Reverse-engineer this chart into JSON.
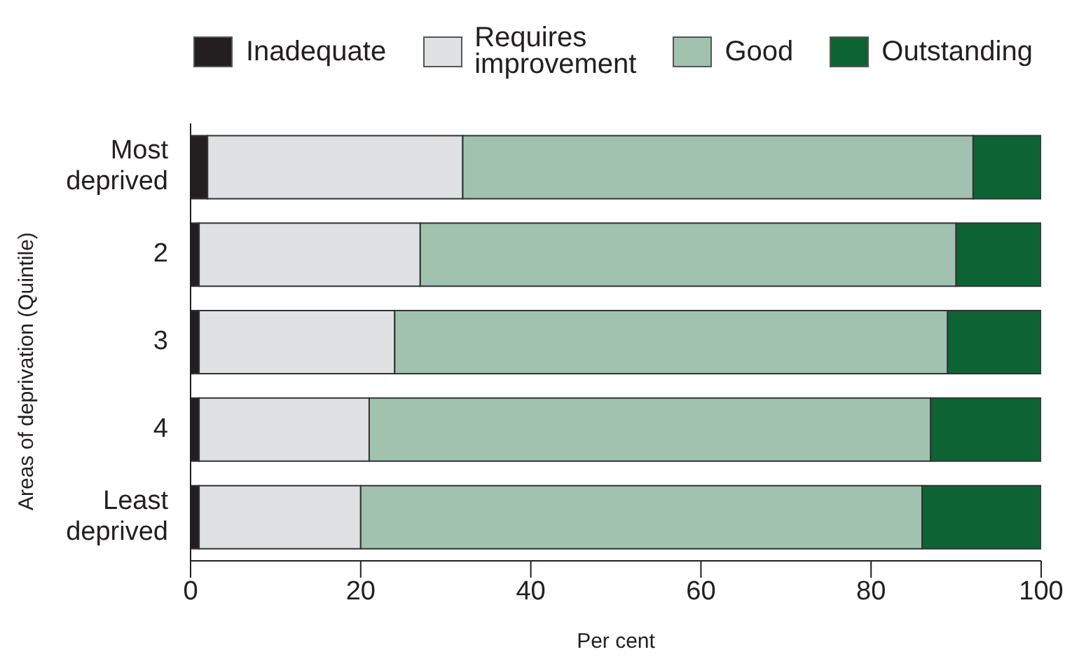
{
  "chart_data": {
    "type": "bar",
    "orientation": "horizontal",
    "stacked": true,
    "xlabel": "Per cent",
    "ylabel": "Areas of deprivation (Quintile)",
    "categories": [
      "Most\ndeprived",
      "2",
      "3",
      "4",
      "Least\ndeprived"
    ],
    "series": [
      {
        "name": "Inadequate",
        "color": "#231f20",
        "values": [
          2,
          1,
          1,
          1,
          1
        ]
      },
      {
        "name": "Requires\nimprovement",
        "color": "#e0e1e3",
        "values": [
          30,
          26,
          23,
          20,
          19
        ]
      },
      {
        "name": "Good",
        "color": "#a1c2ae",
        "values": [
          60,
          63,
          65,
          66,
          66
        ]
      },
      {
        "name": "Outstanding",
        "color": "#0e6335",
        "values": [
          8,
          10,
          11,
          13,
          14
        ]
      }
    ],
    "xlim": [
      0,
      100
    ],
    "xticks": [
      0,
      20,
      40,
      60,
      80,
      100
    ],
    "grid": false,
    "legend": "top right"
  }
}
